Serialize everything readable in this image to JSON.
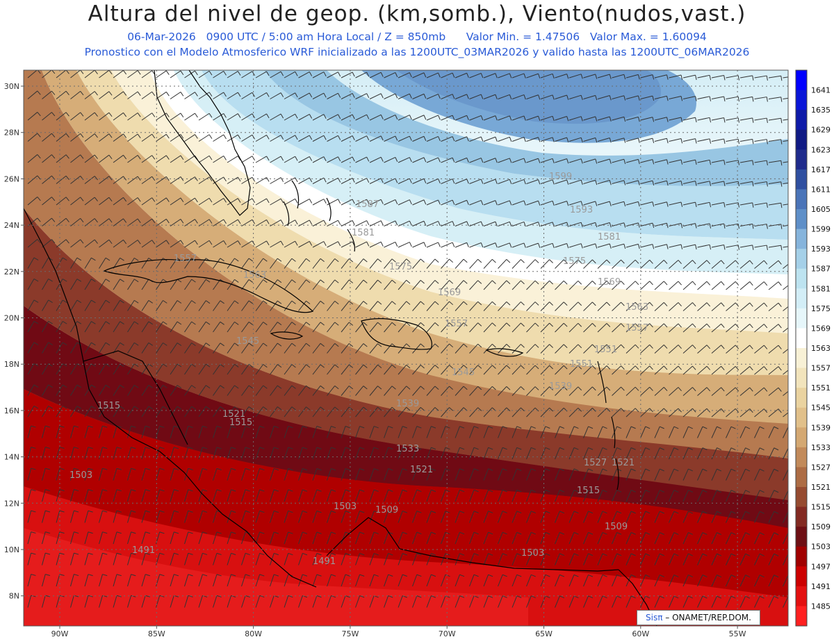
{
  "header": {
    "title": "Altura del nivel de geop. (km,somb.), Viento(nudos,vast.)",
    "line1": {
      "date": "06-Mar-2026",
      "time": "0900 UTC / 5:00 am Hora Local / Z = 850mb",
      "min": "Valor Min. = 1.47506",
      "max": "Valor Max. = 1.60094"
    },
    "line2": "Pronostico con el Modelo Atmosferico WRF inicializado a las 1200UTC_03MAR2026 y valido hasta las  1200UTC_06MAR2026"
  },
  "map": {
    "lat_labels": [
      "30N",
      "28N",
      "26N",
      "24N",
      "22N",
      "20N",
      "18N",
      "16N",
      "14N",
      "12N",
      "10N",
      "8N"
    ],
    "lon_labels": [
      "90W",
      "85W",
      "80W",
      "75W",
      "70W",
      "65W",
      "60W",
      "55W"
    ],
    "contour_labels": [
      "1599",
      "1593",
      "1587",
      "1581",
      "1581",
      "1575",
      "1575",
      "1569",
      "1569",
      "1563",
      "1563",
      "1557",
      "1557",
      "1557",
      "1551",
      "1551",
      "1545",
      "1545",
      "1539",
      "1539",
      "1533",
      "1527",
      "1521",
      "1521",
      "1521",
      "1515",
      "1515",
      "1515",
      "1509",
      "1509",
      "1503",
      "1503",
      "1503",
      "1491",
      "1491"
    ]
  },
  "colorbar": {
    "levels": [
      "1641",
      "1635",
      "1629",
      "1623",
      "1617",
      "1611",
      "1605",
      "1599",
      "1593",
      "1587",
      "1581",
      "1575",
      "1569",
      "1563",
      "1557",
      "1551",
      "1545",
      "1539",
      "1533",
      "1527",
      "1521",
      "1515",
      "1509",
      "1503",
      "1497",
      "1491",
      "1485"
    ],
    "colors": [
      "#0000ff",
      "#0a16d8",
      "#0e1aa8",
      "#101a84",
      "#1f2b8c",
      "#2f4fa0",
      "#4a74b8",
      "#5e8fc8",
      "#86b4dc",
      "#a5d0e8",
      "#bde3f0",
      "#d3eef7",
      "#e6f6fa",
      "#ffffff",
      "#f8f1d6",
      "#f2e4bc",
      "#ead3a0",
      "#e1c08a",
      "#d4a872",
      "#c28a5a",
      "#ad6c44",
      "#964b30",
      "#832a22",
      "#6e0f14",
      "#a00000",
      "#cc0000",
      "#e31010",
      "#ff2020"
    ]
  },
  "credit": {
    "brand": "Sisπ",
    "text": " – ONAMET/REP.DOM."
  },
  "colors": {
    "subtitle": "#2a5bd7",
    "contour": "#b4b4b4",
    "coast": "#000000"
  }
}
